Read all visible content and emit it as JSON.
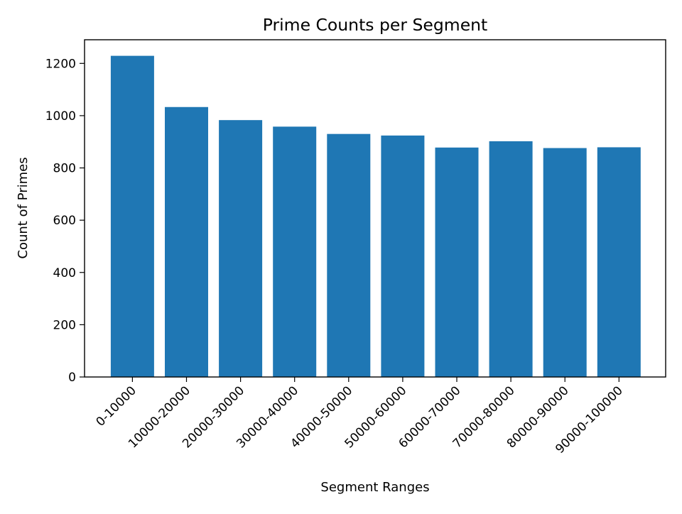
{
  "chart_data": {
    "type": "bar",
    "title": "Prime Counts per Segment",
    "xlabel": "Segment Ranges",
    "ylabel": "Count of Primes",
    "categories": [
      "0-10000",
      "10000-20000",
      "20000-30000",
      "30000-40000",
      "40000-50000",
      "50000-60000",
      "60000-70000",
      "70000-80000",
      "80000-90000",
      "90000-100000"
    ],
    "values": [
      1229,
      1033,
      983,
      958,
      930,
      924,
      878,
      902,
      876,
      879
    ],
    "ylim": [
      0,
      1290.45
    ],
    "yticks": [
      0,
      200,
      400,
      600,
      800,
      1000,
      1200
    ],
    "bar_color": "#1f77b4",
    "grid": false,
    "legend": "none"
  }
}
